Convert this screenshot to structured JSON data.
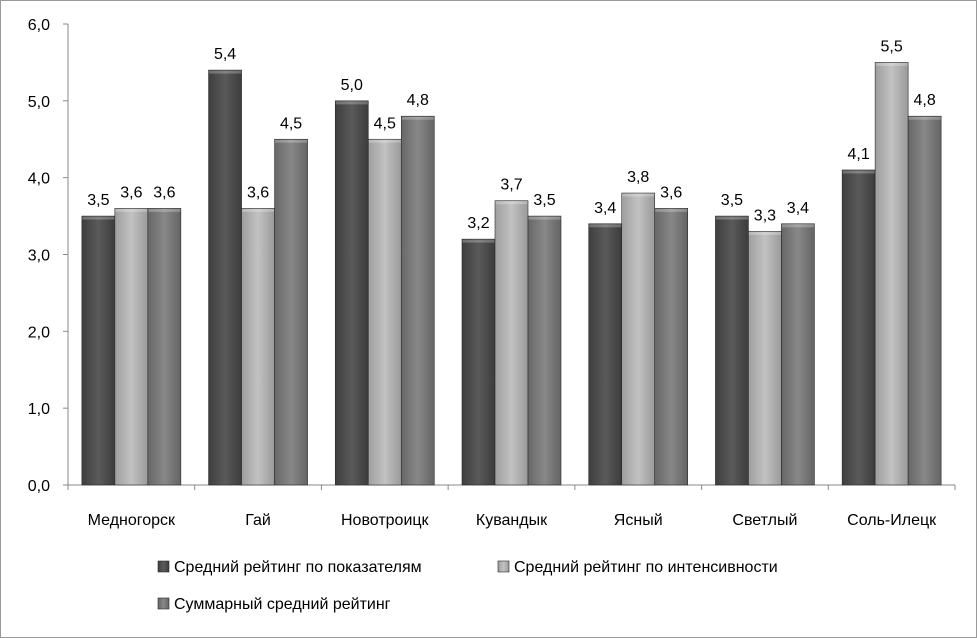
{
  "chart_data": {
    "type": "bar",
    "categories": [
      "Медногорск",
      "Гай",
      "Новотроицк",
      "Кувандык",
      "Ясный",
      "Светлый",
      "Соль-Илецк"
    ],
    "series": [
      {
        "name": "Средний рейтинг по показателям",
        "values": [
          3.5,
          5.4,
          5.0,
          3.2,
          3.4,
          3.5,
          4.1
        ],
        "labels": [
          "3,5",
          "5,4",
          "5,0",
          "3,2",
          "3,4",
          "3,5",
          "4,1"
        ],
        "color": "#505050"
      },
      {
        "name": "Средний рейтинг по интенсивности",
        "values": [
          3.6,
          3.6,
          4.5,
          3.7,
          3.8,
          3.3,
          5.5
        ],
        "labels": [
          "3,6",
          "3,6",
          "4,5",
          "3,7",
          "3,8",
          "3,3",
          "5,5"
        ],
        "color": "#b4b4b4"
      },
      {
        "name": "Суммарный средний рейтинг",
        "values": [
          3.6,
          4.5,
          4.8,
          3.5,
          3.6,
          3.4,
          4.8
        ],
        "labels": [
          "3,6",
          "4,5",
          "4,8",
          "3,5",
          "3,6",
          "3,4",
          "4,8"
        ],
        "color": "#7c7c7c"
      }
    ],
    "ylim": [
      0,
      6
    ],
    "yticks": [
      0,
      1,
      2,
      3,
      4,
      5,
      6
    ],
    "ytick_labels": [
      "0,0",
      "1,0",
      "2,0",
      "3,0",
      "4,0",
      "5,0",
      "6,0"
    ],
    "grid": false,
    "legend_position": "bottom",
    "title": "",
    "xlabel": "",
    "ylabel": ""
  }
}
